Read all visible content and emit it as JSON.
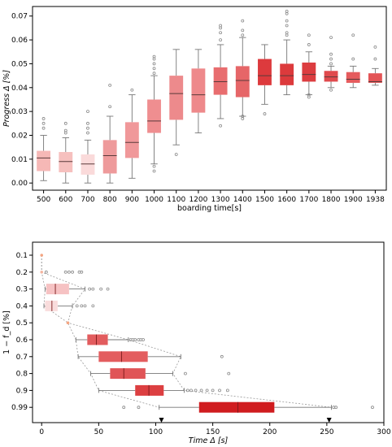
{
  "chart_data": [
    {
      "type": "box",
      "orientation": "vertical",
      "xlabel": "boarding time[s]",
      "ylabel": "Progress Δ [%]",
      "ylim": [
        -0.003,
        0.074
      ],
      "yticks": [
        "0.00",
        "0.01",
        "0.02",
        "0.03",
        "0.04",
        "0.05",
        "0.06",
        "0.07"
      ],
      "categories": [
        "500",
        "600",
        "700",
        "800",
        "900",
        "1000",
        "1100",
        "1200",
        "1300",
        "1400",
        "1500",
        "1600",
        "1700",
        "1800",
        "1900",
        "1938"
      ],
      "boxes": [
        {
          "category": "500",
          "whislo": 0.001,
          "q1": 0.005,
          "med": 0.0105,
          "q3": 0.0135,
          "whishi": 0.02,
          "fliers": [
            0.023,
            0.025,
            0.027
          ],
          "color": "#f6b8b6"
        },
        {
          "category": "600",
          "whislo": 0.0,
          "q1": 0.0045,
          "med": 0.009,
          "q3": 0.013,
          "whishi": 0.019,
          "fliers": [
            0.021,
            0.022,
            0.025
          ],
          "color": "#f6c0be"
        },
        {
          "category": "700",
          "whislo": 0.0,
          "q1": 0.0035,
          "med": 0.008,
          "q3": 0.012,
          "whishi": 0.018,
          "fliers": [
            0.021,
            0.023,
            0.025,
            0.03
          ],
          "color": "#fadada"
        },
        {
          "category": "800",
          "whislo": 0.0,
          "q1": 0.004,
          "med": 0.0115,
          "q3": 0.018,
          "whishi": 0.028,
          "fliers": [
            0.032,
            0.041
          ],
          "color": "#ee9a9b"
        },
        {
          "category": "900",
          "whislo": 0.002,
          "q1": 0.0105,
          "med": 0.017,
          "q3": 0.0255,
          "whishi": 0.037,
          "fliers": [
            0.039
          ],
          "color": "#f0989a"
        },
        {
          "category": "1000",
          "whislo": 0.008,
          "q1": 0.021,
          "med": 0.026,
          "q3": 0.035,
          "whishi": 0.045,
          "fliers": [
            0.005,
            0.007,
            0.046,
            0.048,
            0.05,
            0.052,
            0.053
          ],
          "color": "#ef8e90"
        },
        {
          "category": "1100",
          "whislo": 0.016,
          "q1": 0.0265,
          "med": 0.0375,
          "q3": 0.045,
          "whishi": 0.056,
          "fliers": [
            0.012
          ],
          "color": "#ed8a8c"
        },
        {
          "category": "1200",
          "whislo": 0.021,
          "q1": 0.0295,
          "med": 0.037,
          "q3": 0.048,
          "whishi": 0.056,
          "fliers": [],
          "color": "#ee898b"
        },
        {
          "category": "1300",
          "whislo": 0.027,
          "q1": 0.037,
          "med": 0.0425,
          "q3": 0.0485,
          "whishi": 0.058,
          "fliers": [
            0.024,
            0.06,
            0.063,
            0.065,
            0.066
          ],
          "color": "#e86d6f"
        },
        {
          "category": "1400",
          "whislo": 0.028,
          "q1": 0.036,
          "med": 0.043,
          "q3": 0.049,
          "whishi": 0.061,
          "fliers": [
            0.027,
            0.028,
            0.062,
            0.064,
            0.068
          ],
          "color": "#e66668"
        },
        {
          "category": "1500",
          "whislo": 0.033,
          "q1": 0.041,
          "med": 0.045,
          "q3": 0.052,
          "whishi": 0.058,
          "fliers": [
            0.029
          ],
          "color": "#dd3a3d"
        },
        {
          "category": "1600",
          "whislo": 0.037,
          "q1": 0.041,
          "med": 0.045,
          "q3": 0.05,
          "whishi": 0.06,
          "fliers": [
            0.062,
            0.063,
            0.066,
            0.068,
            0.071,
            0.072
          ],
          "color": "#dc3a3c"
        },
        {
          "category": "1700",
          "whislo": 0.037,
          "q1": 0.0425,
          "med": 0.0455,
          "q3": 0.0505,
          "whishi": 0.055,
          "fliers": [
            0.036,
            0.037,
            0.058,
            0.062
          ],
          "color": "#dc3d40"
        },
        {
          "category": "1800",
          "whislo": 0.04,
          "q1": 0.0425,
          "med": 0.0445,
          "q3": 0.047,
          "whishi": 0.049,
          "fliers": [
            0.039,
            0.05,
            0.052,
            0.054,
            0.061
          ],
          "color": "#e04a4d"
        },
        {
          "category": "1900",
          "whislo": 0.04,
          "q1": 0.042,
          "med": 0.0435,
          "q3": 0.0465,
          "whishi": 0.049,
          "fliers": [
            0.052,
            0.062
          ],
          "color": "#e55b5d"
        },
        {
          "category": "1938",
          "whislo": 0.041,
          "q1": 0.042,
          "med": 0.0425,
          "q3": 0.046,
          "whishi": 0.048,
          "fliers": [
            0.052,
            0.057
          ],
          "color": "#e35456"
        }
      ]
    },
    {
      "type": "box",
      "orientation": "horizontal",
      "xlabel": "Time Δ [s]",
      "ylabel": "1 − f_d [%]",
      "xlim": [
        -8,
        300
      ],
      "xticks": [
        "0",
        "50",
        "100",
        "150",
        "200",
        "250",
        "300"
      ],
      "categories": [
        "0.1",
        "0.2",
        "0.3",
        "0.4",
        "0.5",
        "0.6",
        "0.7",
        "0.8",
        "0.9",
        "0.99"
      ],
      "arrow_markers": [
        105,
        252
      ],
      "boxes": [
        {
          "category": "0.1",
          "whislo": 0,
          "q1": 0,
          "med": 0,
          "q3": 0,
          "whishi": 0,
          "fliers": [],
          "color": "#f4a582"
        },
        {
          "category": "0.2",
          "whislo": 0,
          "q1": 0,
          "med": 0,
          "q3": 0,
          "whishi": 0,
          "fliers": [
            4,
            21,
            24,
            27,
            33,
            35
          ],
          "color": "#f4b5a0"
        },
        {
          "category": "0.3",
          "whislo": 3,
          "q1": 4,
          "med": 12,
          "q3": 24,
          "whishi": 38,
          "fliers": [
            42,
            45,
            52,
            58
          ],
          "color": "#f6c2c3"
        },
        {
          "category": "0.4",
          "whislo": 2,
          "q1": 3,
          "med": 9,
          "q3": 14,
          "whishi": 27,
          "fliers": [
            31,
            35,
            38,
            45
          ],
          "color": "#f9dcdc"
        },
        {
          "category": "0.5",
          "whislo": 23,
          "q1": 23,
          "med": 23,
          "q3": 23,
          "whishi": 23,
          "fliers": [],
          "color": "#f4a582"
        },
        {
          "category": "0.6",
          "whislo": 30,
          "q1": 40,
          "med": 48,
          "q3": 58,
          "whishi": 76,
          "fliers": [
            78,
            80,
            82,
            85,
            87,
            89
          ],
          "color": "#e25c5e"
        },
        {
          "category": "0.7",
          "whislo": 32,
          "q1": 50,
          "med": 70,
          "q3": 93,
          "whishi": 122,
          "fliers": [
            158
          ],
          "color": "#e35d5f"
        },
        {
          "category": "0.8",
          "whislo": 43,
          "q1": 60,
          "med": 72,
          "q3": 91,
          "whishi": 115,
          "fliers": [
            126,
            164
          ],
          "color": "#e05557"
        },
        {
          "category": "0.9",
          "whislo": 50,
          "q1": 82,
          "med": 94,
          "q3": 107,
          "whishi": 125,
          "fliers": [
            128,
            131,
            135,
            140,
            145,
            150,
            156,
            163
          ],
          "color": "#dc3f41"
        },
        {
          "category": "0.99",
          "whislo": 103,
          "q1": 138,
          "med": 172,
          "q3": 204,
          "whishi": 254,
          "fliers": [
            72,
            85,
            256,
            258,
            290
          ],
          "color": "#d01c1f"
        }
      ]
    }
  ]
}
